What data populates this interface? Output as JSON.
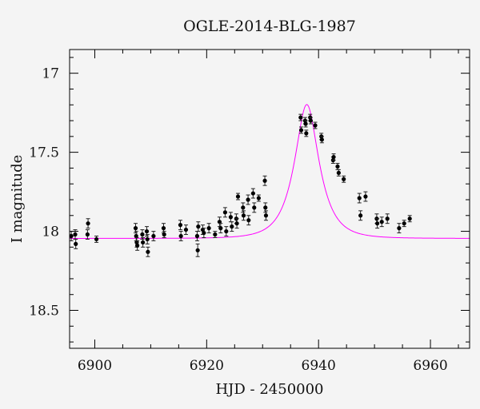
{
  "chart_data": {
    "type": "scatter",
    "title": "OGLE-2014-BLG-1987",
    "xlabel": "HJD - 2450000",
    "ylabel": "I magnitude",
    "xlim": [
      6895.5,
      6967
    ],
    "ylim": [
      18.74,
      16.85
    ],
    "y_inverted": true,
    "grid": false,
    "xticks": [
      6900,
      6920,
      6940,
      6960
    ],
    "xtick_labels": [
      "6900",
      "6920",
      "6940",
      "6960"
    ],
    "yticks": [
      17,
      17.5,
      18,
      18.5
    ],
    "ytick_labels": [
      "17",
      "17.5",
      "18",
      "18.5"
    ],
    "colors": {
      "model": "#ff00ff",
      "points": "#000000",
      "frame": "#000000",
      "background": "#f4f4f4"
    },
    "series": [
      {
        "kind": "points",
        "x": [
          6895.8,
          6896.5,
          6896.6,
          6898.7,
          6898.8,
          6900.3,
          6907.3,
          6907.4,
          6907.5,
          6907.6,
          6908.5,
          6908.6,
          6909.3,
          6909.4,
          6909.5,
          6910.5,
          6912.3,
          6912.4,
          6915.3,
          6915.4,
          6916.3,
          6918.3,
          6918.4,
          6918.5,
          6919.3,
          6919.5,
          6920.4,
          6921.5,
          6922.3,
          6922.5,
          6923.3,
          6923.5,
          6924.3,
          6924.5,
          6925.3,
          6925.4,
          6925.6,
          6926.5,
          6926.6,
          6927.4,
          6927.5,
          6928.3,
          6928.5,
          6929.3,
          6930.4,
          6930.5,
          6930.6,
          6936.8,
          6936.9,
          6937.6,
          6937.7,
          6937.8,
          6938.5,
          6938.6,
          6939.4,
          6940.5,
          6940.6,
          6942.6,
          6942.7,
          6943.4,
          6943.6,
          6944.5,
          6947.3,
          6947.5,
          6948.4,
          6950.4,
          6950.5,
          6951.3,
          6952.3,
          6954.4,
          6955.3,
          6956.3
        ],
        "y": [
          18.03,
          18.02,
          18.08,
          18.02,
          17.95,
          18.05,
          17.98,
          18.03,
          18.07,
          18.09,
          18.02,
          18.07,
          18.0,
          18.05,
          18.13,
          18.03,
          17.98,
          18.02,
          17.96,
          18.03,
          17.99,
          18.03,
          18.12,
          17.97,
          17.99,
          18.01,
          17.98,
          18.02,
          17.94,
          17.98,
          17.88,
          18.0,
          17.91,
          17.97,
          17.92,
          17.95,
          17.78,
          17.85,
          17.9,
          17.8,
          17.93,
          17.76,
          17.85,
          17.79,
          17.68,
          17.85,
          17.9,
          17.28,
          17.36,
          17.3,
          17.32,
          17.38,
          17.28,
          17.3,
          17.33,
          17.4,
          17.42,
          17.55,
          17.53,
          17.59,
          17.63,
          17.67,
          17.79,
          17.9,
          17.78,
          17.92,
          17.95,
          17.94,
          17.92,
          17.98,
          17.95,
          17.92
        ],
        "err": [
          0.03,
          0.03,
          0.03,
          0.03,
          0.03,
          0.02,
          0.03,
          0.03,
          0.03,
          0.03,
          0.03,
          0.03,
          0.03,
          0.03,
          0.03,
          0.03,
          0.03,
          0.02,
          0.03,
          0.03,
          0.03,
          0.03,
          0.04,
          0.03,
          0.03,
          0.03,
          0.03,
          0.02,
          0.03,
          0.03,
          0.03,
          0.03,
          0.03,
          0.03,
          0.03,
          0.03,
          0.02,
          0.03,
          0.03,
          0.03,
          0.03,
          0.03,
          0.03,
          0.02,
          0.03,
          0.03,
          0.03,
          0.02,
          0.02,
          0.02,
          0.02,
          0.02,
          0.02,
          0.02,
          0.02,
          0.02,
          0.02,
          0.02,
          0.02,
          0.02,
          0.02,
          0.02,
          0.03,
          0.03,
          0.03,
          0.03,
          0.03,
          0.03,
          0.03,
          0.03,
          0.02,
          0.02
        ]
      },
      {
        "kind": "model",
        "t0": 6937.9,
        "u0": 0.5,
        "tE": 3.75,
        "baseline_mag": 18.045,
        "x_range": [
          6895.5,
          6967
        ]
      }
    ]
  }
}
